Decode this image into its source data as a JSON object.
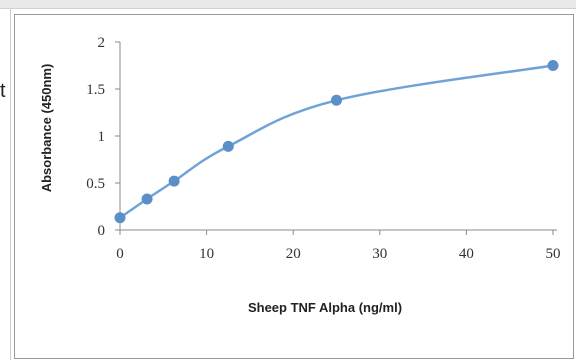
{
  "page": {
    "stray_text": "t"
  },
  "chart_data": {
    "type": "line",
    "title": "",
    "xlabel": "Sheep TNF Alpha (ng/ml)",
    "ylabel": "Absorbance (450nm)",
    "xlim": [
      0,
      50
    ],
    "ylim": [
      0,
      2
    ],
    "xticks": [
      "0",
      "10",
      "20",
      "30",
      "40",
      "50"
    ],
    "yticks": [
      "0",
      "0.5",
      "1",
      "1.5",
      "2"
    ],
    "grid": false,
    "line_color": "#6fa3d6",
    "marker_color": "#5b8fc7",
    "series": [
      {
        "x": [
          0,
          3.125,
          6.25,
          12.5,
          25,
          50
        ],
        "y": [
          0.13,
          0.33,
          0.52,
          0.89,
          1.38,
          1.75
        ]
      }
    ]
  }
}
